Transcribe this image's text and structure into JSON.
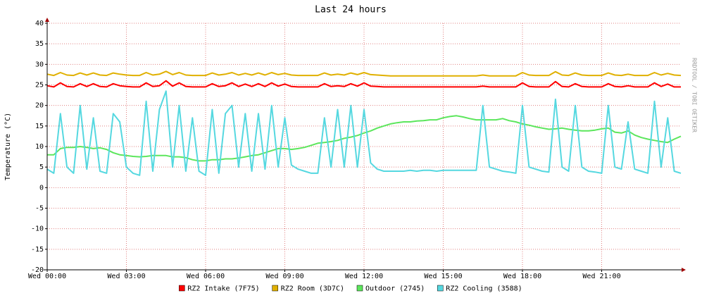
{
  "chart_data": {
    "type": "line",
    "title": "Last 24 hours",
    "y_label": "Temperature (°C)",
    "watermark": "RRDTOOL / TOBI OETIKER",
    "grid": true,
    "x": [
      0,
      0.25,
      0.5,
      0.75,
      1,
      1.25,
      1.5,
      1.75,
      2,
      2.25,
      2.5,
      2.75,
      3,
      3.25,
      3.5,
      3.75,
      4,
      4.25,
      4.5,
      4.75,
      5,
      5.25,
      5.5,
      5.75,
      6,
      6.25,
      6.5,
      6.75,
      7,
      7.25,
      7.5,
      7.75,
      8,
      8.25,
      8.5,
      8.75,
      9,
      9.25,
      9.5,
      9.75,
      10,
      10.25,
      10.5,
      10.75,
      11,
      11.25,
      11.5,
      11.75,
      12,
      12.25,
      12.5,
      12.75,
      13,
      13.25,
      13.5,
      13.75,
      14,
      14.25,
      14.5,
      14.75,
      15,
      15.25,
      15.5,
      15.75,
      16,
      16.25,
      16.5,
      16.75,
      17,
      17.25,
      17.5,
      17.75,
      18,
      18.25,
      18.5,
      18.75,
      19,
      19.25,
      19.5,
      19.75,
      20,
      20.25,
      20.5,
      20.75,
      21,
      21.25,
      21.5,
      21.75,
      22,
      22.25,
      22.5,
      22.75,
      23,
      23.25,
      23.5,
      23.75,
      24
    ],
    "xlim": [
      0,
      24
    ],
    "xticks": [
      {
        "value": 0,
        "label": "Wed 00:00"
      },
      {
        "value": 3,
        "label": "Wed 03:00"
      },
      {
        "value": 6,
        "label": "Wed 06:00"
      },
      {
        "value": 9,
        "label": "Wed 09:00"
      },
      {
        "value": 12,
        "label": "Wed 12:00"
      },
      {
        "value": 15,
        "label": "Wed 15:00"
      },
      {
        "value": 18,
        "label": "Wed 18:00"
      },
      {
        "value": 21,
        "label": "Wed 21:00"
      }
    ],
    "ylim": [
      -20,
      40
    ],
    "yticks": [
      -20,
      -15,
      -10,
      -5,
      0,
      5,
      10,
      15,
      20,
      25,
      30,
      35,
      40
    ],
    "series": [
      {
        "name": "RZ2 Intake (7F75)",
        "color": "#ff0000",
        "values": [
          24.8,
          24.5,
          25.5,
          24.6,
          24.5,
          25.3,
          24.6,
          25.3,
          24.6,
          24.5,
          25.3,
          24.8,
          24.6,
          24.5,
          24.5,
          25.5,
          24.6,
          24.8,
          26,
          24.7,
          25.5,
          24.6,
          24.5,
          24.5,
          24.5,
          25.3,
          24.6,
          24.8,
          25.5,
          24.6,
          25.2,
          24.6,
          25.3,
          24.6,
          25.5,
          24.7,
          25.2,
          24.6,
          24.5,
          24.5,
          24.5,
          24.5,
          25.3,
          24.6,
          24.8,
          24.6,
          25.3,
          24.7,
          25.5,
          24.7,
          24.6,
          24.5,
          24.5,
          24.5,
          24.5,
          24.5,
          24.5,
          24.5,
          24.5,
          24.5,
          24.5,
          24.5,
          24.5,
          24.5,
          24.5,
          24.5,
          24.7,
          24.5,
          24.5,
          24.5,
          24.5,
          24.5,
          25.5,
          24.6,
          24.5,
          24.5,
          24.5,
          25.8,
          24.6,
          24.5,
          25.3,
          24.6,
          24.5,
          24.5,
          24.5,
          25.3,
          24.6,
          24.5,
          24.8,
          24.5,
          24.5,
          24.5,
          25.5,
          24.6,
          25.2,
          24.5,
          24.5
        ]
      },
      {
        "name": "RZ2 Room (3D7C)",
        "color": "#e0b000",
        "values": [
          27.6,
          27.3,
          28,
          27.4,
          27.3,
          27.9,
          27.4,
          27.9,
          27.4,
          27.3,
          27.9,
          27.6,
          27.4,
          27.3,
          27.3,
          28,
          27.4,
          27.6,
          28.3,
          27.5,
          28,
          27.4,
          27.3,
          27.3,
          27.3,
          27.9,
          27.4,
          27.6,
          28,
          27.4,
          27.8,
          27.4,
          27.9,
          27.4,
          28,
          27.5,
          27.8,
          27.4,
          27.3,
          27.3,
          27.3,
          27.3,
          27.9,
          27.4,
          27.6,
          27.4,
          27.9,
          27.5,
          28,
          27.5,
          27.4,
          27.3,
          27.2,
          27.2,
          27.2,
          27.2,
          27.2,
          27.2,
          27.2,
          27.2,
          27.2,
          27.2,
          27.2,
          27.2,
          27.2,
          27.2,
          27.4,
          27.2,
          27.2,
          27.2,
          27.2,
          27.2,
          28,
          27.4,
          27.3,
          27.3,
          27.3,
          28.2,
          27.4,
          27.3,
          27.9,
          27.4,
          27.3,
          27.3,
          27.3,
          27.9,
          27.4,
          27.3,
          27.6,
          27.3,
          27.3,
          27.3,
          28,
          27.4,
          27.8,
          27.4,
          27.3
        ]
      },
      {
        "name": "Outdoor (2745)",
        "color": "#5ce65c",
        "values": [
          8,
          8,
          9.5,
          9.8,
          9.8,
          10,
          9.8,
          9.5,
          9.7,
          9.3,
          8.5,
          8,
          7.8,
          7.6,
          7.5,
          7.6,
          7.8,
          7.8,
          7.8,
          7.5,
          7.5,
          7.3,
          6.8,
          6.5,
          6.5,
          6.8,
          6.8,
          7,
          7,
          7.2,
          7.5,
          7.8,
          8,
          8.5,
          9,
          9.5,
          9.5,
          9.3,
          9.5,
          9.8,
          10.3,
          10.8,
          11,
          11.2,
          11.5,
          12,
          12.3,
          12.7,
          13.3,
          13.8,
          14.5,
          15,
          15.5,
          15.8,
          16,
          16,
          16.2,
          16.3,
          16.5,
          16.5,
          17,
          17.3,
          17.5,
          17.2,
          16.8,
          16.5,
          16.5,
          16.5,
          16.5,
          16.8,
          16.3,
          16,
          15.5,
          15.2,
          14.8,
          14.5,
          14.2,
          14.3,
          14.5,
          14.2,
          14,
          13.8,
          13.8,
          14,
          14.3,
          14.5,
          13.5,
          13.3,
          13.8,
          12.8,
          12.2,
          11.8,
          11.5,
          11.2,
          11,
          11.8,
          12.5
        ]
      },
      {
        "name": "RZ2 Cooling (3588)",
        "color": "#55d8e0",
        "values": [
          4.5,
          3.5,
          18,
          5,
          3.5,
          20,
          4.5,
          17,
          4,
          3.5,
          18,
          16,
          5,
          3.5,
          3,
          21,
          4,
          19,
          23.5,
          5,
          20,
          4,
          17,
          4,
          3,
          19,
          3.5,
          18,
          20,
          5,
          18,
          4,
          18,
          4.5,
          20,
          5,
          17,
          5.5,
          4.5,
          4,
          3.5,
          3.5,
          17,
          5,
          19,
          5,
          20,
          5,
          19,
          6,
          4.5,
          4,
          4,
          4,
          4,
          4.2,
          4,
          4.2,
          4.2,
          4,
          4.2,
          4.2,
          4.2,
          4.2,
          4.2,
          4.2,
          20,
          5,
          4.5,
          4,
          3.8,
          3.5,
          20,
          5,
          4.5,
          4,
          3.8,
          21.5,
          5,
          4,
          20,
          5,
          4,
          3.8,
          3.5,
          20,
          5,
          4.5,
          16,
          4.5,
          4,
          3.5,
          21,
          5,
          17,
          4,
          3.5
        ]
      }
    ]
  }
}
